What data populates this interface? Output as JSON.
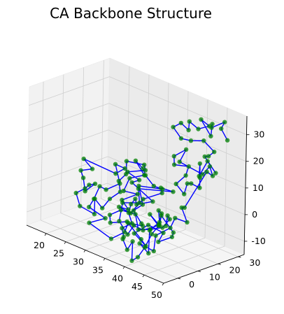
{
  "chart_data": {
    "type": "scatter",
    "projection": "3d",
    "title": "CA Backbone Structure",
    "xlabel": "",
    "ylabel": "",
    "zlabel": "",
    "xlim": [
      15,
      50
    ],
    "ylim": [
      -7,
      33
    ],
    "zlim": [
      -15,
      37
    ],
    "x_ticks": [
      20,
      25,
      30,
      35,
      40,
      45,
      50
    ],
    "y_ticks": [
      0,
      10,
      20,
      30
    ],
    "z_ticks": [
      -10,
      0,
      10,
      20,
      30
    ],
    "grid": true,
    "series": [
      {
        "marker_color": "#008000",
        "line_color": "#0000ff",
        "points": [
          [
            46.9,
            29.6,
            26.9
          ],
          [
            44.2,
            31.7,
            29.0
          ],
          [
            44.8,
            32.2,
            31.7
          ],
          [
            41.8,
            31.6,
            27.9
          ],
          [
            43.0,
            29.6,
            30.6
          ],
          [
            43.7,
            27.6,
            27.0
          ],
          [
            41.6,
            26.7,
            32.2
          ],
          [
            42.9,
            28.3,
            30.1
          ],
          [
            41.8,
            25.0,
            29.2
          ],
          [
            38.3,
            27.4,
            29.2
          ],
          [
            39.8,
            24.1,
            27.8
          ],
          [
            37.4,
            25.0,
            28.7
          ],
          [
            36.0,
            23.9,
            26.6
          ],
          [
            38.2,
            23.6,
            23.8
          ],
          [
            40.7,
            23.6,
            24.5
          ],
          [
            43.6,
            24.3,
            26.1
          ],
          [
            46.9,
            23.1,
            24.3
          ],
          [
            45.0,
            24.1,
            21.2
          ],
          [
            45.7,
            20.8,
            22.4
          ],
          [
            48.4,
            21.1,
            17.8
          ],
          [
            47.8,
            18.1,
            22.7
          ],
          [
            47.2,
            15.2,
            17.5
          ],
          [
            47.6,
            14.7,
            22.6
          ],
          [
            49.3,
            11.5,
            19.2
          ],
          [
            48.5,
            13.0,
            14.5
          ],
          [
            48.0,
            9.7,
            16.7
          ],
          [
            44.1,
            15.5,
            12.7
          ],
          [
            44.4,
            13.4,
            9.5
          ],
          [
            41.1,
            15.8,
            10.6
          ],
          [
            41.8,
            19.2,
            13.3
          ],
          [
            42.4,
            19.4,
            17.0
          ],
          [
            40.3,
            16.3,
            17.2
          ],
          [
            39.9,
            16.9,
            20.0
          ],
          [
            41.3,
            20.1,
            22.5
          ],
          [
            39.2,
            21.1,
            16.3
          ],
          [
            44.7,
            21.9,
            14.8
          ],
          [
            45.1,
            24.6,
            17.3
          ],
          [
            47.0,
            22.4,
            15.5
          ],
          [
            47.3,
            18.8,
            18.2
          ],
          [
            46.2,
            10.2,
            6.4
          ],
          [
            47.6,
            6.0,
            8.4
          ],
          [
            48.9,
            6.3,
            3.6
          ],
          [
            47.9,
            2.2,
            5.7
          ],
          [
            46.5,
            2.7,
            1.0
          ],
          [
            44.7,
            -1.0,
            -2.0
          ],
          [
            45.6,
            -3.6,
            -6.6
          ],
          [
            43.5,
            -6.6,
            -4.2
          ],
          [
            46.3,
            -7.6,
            -5.9
          ],
          [
            44.9,
            -4.5,
            1.0
          ],
          [
            45.8,
            -1.4,
            3.8
          ],
          [
            44.7,
            0.2,
            7.1
          ],
          [
            43.9,
            3.3,
            4.6
          ],
          [
            43.3,
            3.2,
            0.1
          ],
          [
            40.3,
            4.6,
            1.7
          ],
          [
            42.3,
            5.1,
            -1.5
          ],
          [
            42.3,
            1.8,
            -3.7
          ],
          [
            41.8,
            -0.6,
            -8.4
          ],
          [
            41.3,
            -3.0,
            -11.7
          ],
          [
            39.6,
            -2.6,
            -14.2
          ],
          [
            39.0,
            -1.2,
            -7.7
          ],
          [
            36.5,
            1.1,
            -13.0
          ],
          [
            33.7,
            4.3,
            -11.6
          ],
          [
            35.3,
            1.6,
            -9.1
          ],
          [
            33.4,
            4.4,
            -7.7
          ],
          [
            35.2,
            5.8,
            -5.2
          ],
          [
            34.7,
            5.0,
            -1.3
          ],
          [
            33.6,
            8.3,
            0.4
          ],
          [
            34.8,
            8.0,
            3.2
          ],
          [
            33.6,
            11.1,
            -0.5
          ],
          [
            36.0,
            14.4,
            1.2
          ],
          [
            32.0,
            11.7,
            6.6
          ],
          [
            34.5,
            10.4,
            9.4
          ],
          [
            32.1,
            9.2,
            11.3
          ],
          [
            34.7,
            13.0,
            12.5
          ],
          [
            32.6,
            16.5,
            12.3
          ],
          [
            28.3,
            16.1,
            11.1
          ],
          [
            28.5,
            15.6,
            6.5
          ],
          [
            27.3,
            14.4,
            3.5
          ],
          [
            29.8,
            10.3,
            2.1
          ],
          [
            28.3,
            8.1,
            -0.9
          ],
          [
            27.6,
            5.8,
            -4.2
          ],
          [
            24.6,
            7.9,
            -3.1
          ],
          [
            26.8,
            3.5,
            -6.3
          ],
          [
            21.9,
            5.9,
            -7.0
          ],
          [
            22.0,
            3.6,
            -1.4
          ],
          [
            24.6,
            2.9,
            2.1
          ],
          [
            23.4,
            7.3,
            1.5
          ],
          [
            23.2,
            10.7,
            0.9
          ],
          [
            20.8,
            10.5,
            -3.3
          ],
          [
            18.5,
            14.0,
            -0.7
          ],
          [
            18.3,
            13.1,
            2.2
          ],
          [
            20.8,
            13.9,
            4.1
          ],
          [
            17.5,
            16.0,
            5.3
          ],
          [
            23.9,
            19.5,
            2.8
          ],
          [
            25.3,
            21.3,
            5.1
          ],
          [
            21.4,
            24.2,
            3.5
          ],
          [
            23.7,
            22.1,
            -1.8
          ],
          [
            21.9,
            18.8,
            -4.3
          ],
          [
            19.2,
            20.9,
            -5.3
          ],
          [
            21.0,
            14.6,
            -7.2
          ],
          [
            21.0,
            12.2,
            -9.6
          ],
          [
            26.1,
            10.4,
            -10.2
          ],
          [
            23.0,
            8.5,
            -13.3
          ],
          [
            29.3,
            7.2,
            -15.0
          ],
          [
            30.9,
            10.7,
            -12.5
          ],
          [
            30.1,
            14.0,
            -10.4
          ],
          [
            32.3,
            17.0,
            -11.0
          ],
          [
            33.4,
            14.1,
            -8.6
          ],
          [
            30.9,
            15.0,
            -5.5
          ],
          [
            30.8,
            19.7,
            -4.6
          ],
          [
            28.9,
            21.3,
            0.8
          ],
          [
            33.6,
            23.9,
            1.8
          ],
          [
            33.2,
            20.3,
            3.7
          ],
          [
            31.6,
            19.2,
            7.0
          ],
          [
            28.8,
            23.4,
            6.7
          ],
          [
            25.4,
            26.4,
            6.7
          ],
          [
            28.1,
            25.5,
            3.2
          ],
          [
            26.8,
            20.8,
            2.5
          ],
          [
            26.7,
            18.1,
            -1.6
          ],
          [
            30.0,
            18.6,
            -0.9
          ],
          [
            27.5,
            15.8,
            -3.9
          ],
          [
            30.8,
            12.5,
            -4.5
          ],
          [
            29.4,
            10.6,
            -3.9
          ],
          [
            33.5,
            8.4,
            -3.1
          ],
          [
            33.4,
            14.7,
            0.4
          ],
          [
            36.4,
            18.2,
            3.6
          ],
          [
            36.7,
            16.9,
            6.1
          ],
          [
            40.2,
            16.2,
            7.0
          ],
          [
            35.4,
            8.3,
            7.3
          ],
          [
            37.1,
            5.6,
            3.8
          ],
          [
            36.0,
            -0.7,
            4.8
          ],
          [
            36.5,
            -3.2,
            -1.1
          ],
          [
            38.4,
            -2.6,
            -5.1
          ],
          [
            37.9,
            1.4,
            -3.1
          ],
          [
            38.8,
            4.3,
            -5.1
          ],
          [
            40.8,
            8.5,
            -3.1
          ],
          [
            39.1,
            12.7,
            -1.7
          ],
          [
            43.1,
            11.0,
            -5.1
          ],
          [
            44.5,
            7.6,
            -5.0
          ],
          [
            40.7,
            8.3,
            -9.4
          ],
          [
            39.7,
            12.7,
            -7.8
          ],
          [
            35.1,
            14.2,
            -8.1
          ],
          [
            33.1,
            11.2,
            -11.7
          ],
          [
            37.2,
            9.0,
            -13.3
          ],
          [
            37.9,
            5.2,
            -9.3
          ],
          [
            35.1,
            3.5,
            -4.0
          ],
          [
            33.4,
            -1.5,
            -4.1
          ],
          [
            33.8,
            -2.6,
            -0.6
          ],
          [
            35.4,
            -0.3,
            1.6
          ],
          [
            38.9,
            0.1,
            2.1
          ],
          [
            41.0,
            -2.4,
            -1.7
          ],
          [
            41.3,
            3.0,
            -2.9
          ],
          [
            43.6,
            4.5,
            -1.2
          ],
          [
            45.0,
            5.3,
            2.6
          ],
          [
            46.4,
            1.4,
            5.9
          ],
          [
            47.6,
            -1.7,
            3.6
          ]
        ]
      }
    ]
  }
}
